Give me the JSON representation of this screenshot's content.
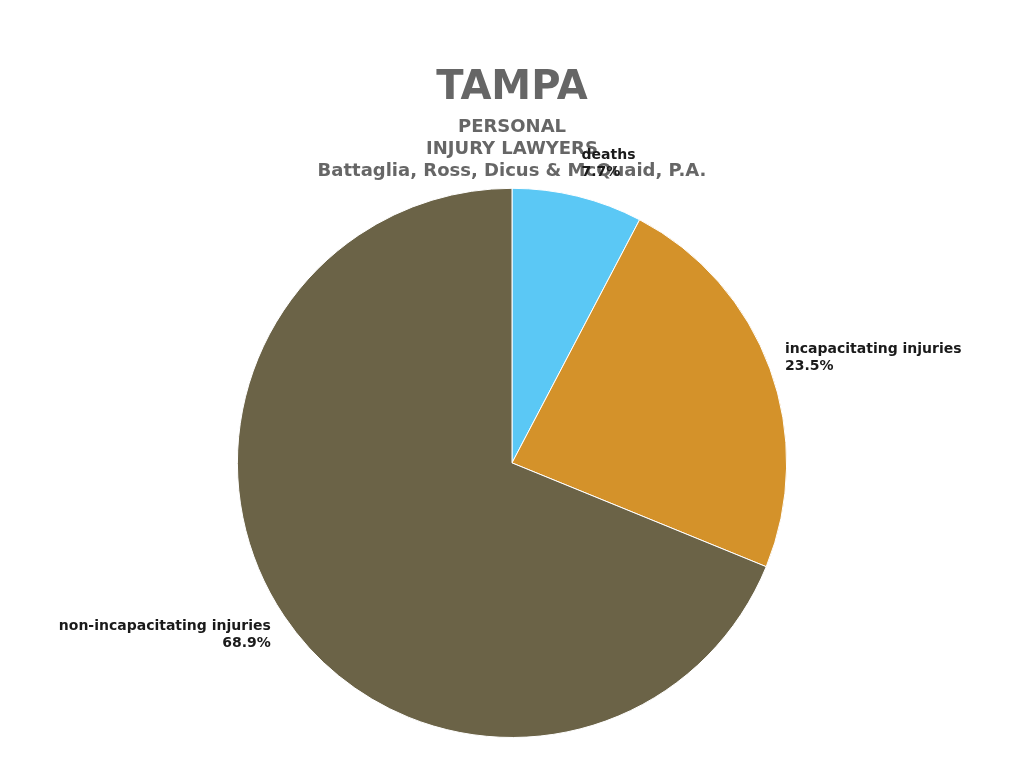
{
  "chart_data": {
    "type": "pie",
    "title": "TAMPA",
    "subtitle": [
      "PERSONAL",
      "INJURY LAWYERS",
      "Battaglia, Ross, Dicus & McQuaid, P.A."
    ],
    "categories": [
      "deaths",
      "incapacitating injuries",
      "non-incapacitating injuries"
    ],
    "values": [
      7.7,
      23.5,
      68.9
    ],
    "value_labels": [
      "7.7%",
      "23.5%",
      "68.9%"
    ],
    "colors": [
      "#5BC8F5",
      "#D4922A",
      "#6B6347"
    ],
    "data_labels": true
  }
}
